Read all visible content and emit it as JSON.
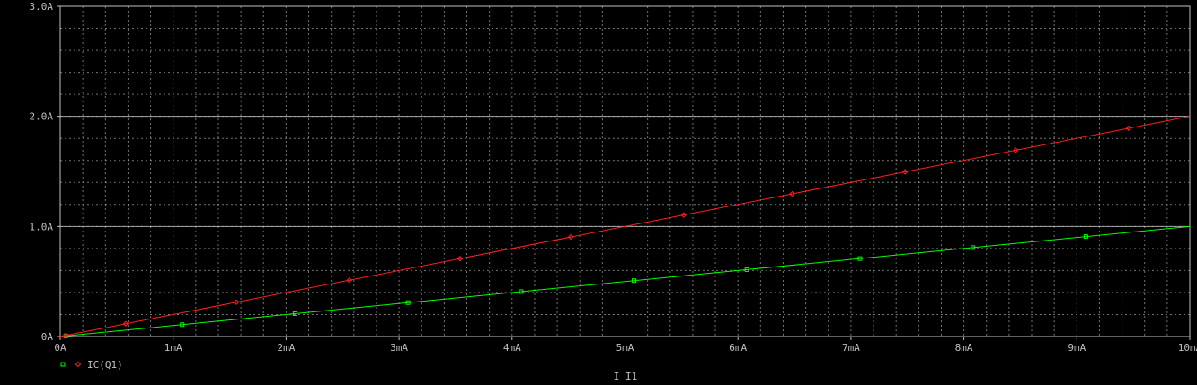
{
  "chart_data": {
    "type": "line",
    "xlabel": "I_I1",
    "x_unit": "mA",
    "xlim": [
      0,
      10
    ],
    "ylim": [
      0,
      3
    ],
    "x_ticks": [
      {
        "value": 0,
        "label": "0A"
      },
      {
        "value": 1,
        "label": "1mA"
      },
      {
        "value": 2,
        "label": "2mA"
      },
      {
        "value": 3,
        "label": "3mA"
      },
      {
        "value": 4,
        "label": "4mA"
      },
      {
        "value": 5,
        "label": "5mA"
      },
      {
        "value": 6,
        "label": "6mA"
      },
      {
        "value": 7,
        "label": "7mA"
      },
      {
        "value": 8,
        "label": "8mA"
      },
      {
        "value": 9,
        "label": "9mA"
      },
      {
        "value": 10,
        "label": "10mA"
      }
    ],
    "y_ticks": [
      {
        "value": 0,
        "label": "0A"
      },
      {
        "value": 1,
        "label": "1.0A"
      },
      {
        "value": 2,
        "label": "2.0A"
      },
      {
        "value": 3,
        "label": "3.0A"
      }
    ],
    "grid": true,
    "background_color": "#000000",
    "axis_color": "#c0c0c0",
    "grid_color": "#d0d0d0",
    "legend_location": "bottom-left",
    "series": [
      {
        "name": "",
        "color": "#00ff00",
        "marker": "square",
        "x": [
          0,
          10
        ],
        "y": [
          0,
          1
        ],
        "marker_x": [
          0.05,
          1.08,
          2.08,
          3.08,
          4.08,
          5.08,
          6.08,
          7.08,
          8.08,
          9.08
        ]
      },
      {
        "name": "IC(Q1)",
        "color": "#ff2020",
        "marker": "diamond",
        "x": [
          0,
          10
        ],
        "y": [
          0,
          2
        ],
        "marker_x": [
          0.05,
          0.58,
          1.56,
          2.56,
          3.54,
          4.52,
          5.52,
          6.48,
          7.48,
          8.46,
          9.46
        ]
      }
    ]
  }
}
